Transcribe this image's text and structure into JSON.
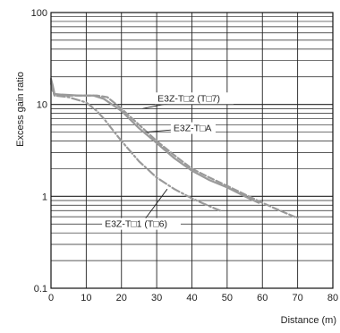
{
  "chart_data": {
    "type": "line",
    "xlabel": "Distance (m)",
    "ylabel": "Excess gain ratio",
    "xlim": [
      0,
      80
    ],
    "ylim": [
      0.1,
      100
    ],
    "yscale": "log",
    "grid": true,
    "x_ticks": [
      0,
      10,
      20,
      30,
      40,
      50,
      60,
      70,
      80
    ],
    "y_ticks": [
      {
        "value": 0.1,
        "label": "0.1"
      },
      {
        "value": 1,
        "label": "1"
      },
      {
        "value": 10,
        "label": "10"
      },
      {
        "value": 100,
        "label": "100"
      }
    ],
    "series": [
      {
        "name": "E3Z-T□2 (T□7)",
        "style": "dashed",
        "color": "#9a9a9a",
        "points": [
          [
            0,
            18
          ],
          [
            0.5,
            15
          ],
          [
            1,
            12.5
          ],
          [
            3,
            12.5
          ],
          [
            8,
            12.5
          ],
          [
            13,
            12.5
          ],
          [
            16,
            12
          ],
          [
            20,
            9
          ],
          [
            25,
            6
          ],
          [
            30,
            4
          ],
          [
            35,
            2.8
          ],
          [
            40,
            2.0
          ],
          [
            45,
            1.6
          ],
          [
            50,
            1.3
          ],
          [
            55,
            1.05
          ],
          [
            60,
            0.85
          ],
          [
            65,
            0.7
          ],
          [
            70,
            0.58
          ]
        ]
      },
      {
        "name": "E3Z-T□A",
        "style": "solid",
        "color": "#9a9a9a",
        "points": [
          [
            0,
            19
          ],
          [
            0.5,
            16
          ],
          [
            1,
            13
          ],
          [
            3,
            12.8
          ],
          [
            8,
            12.5
          ],
          [
            12,
            12.5
          ],
          [
            15,
            11.5
          ],
          [
            20,
            8.5
          ],
          [
            25,
            5.5
          ],
          [
            30,
            3.8
          ],
          [
            35,
            2.6
          ],
          [
            40,
            1.9
          ],
          [
            45,
            1.5
          ],
          [
            50,
            1.25
          ],
          [
            55,
            1.0
          ],
          [
            59,
            0.85
          ]
        ]
      },
      {
        "name": "E3Z-T□1 (T□6)",
        "style": "dashdot",
        "color": "#9a9a9a",
        "points": [
          [
            0,
            17
          ],
          [
            0.5,
            14
          ],
          [
            1,
            12.5
          ],
          [
            5,
            12
          ],
          [
            10,
            10.5
          ],
          [
            13,
            8.5
          ],
          [
            15,
            7
          ],
          [
            20,
            4
          ],
          [
            25,
            2.4
          ],
          [
            30,
            1.6
          ],
          [
            35,
            1.2
          ],
          [
            40,
            0.95
          ],
          [
            45,
            0.78
          ],
          [
            48,
            0.7
          ]
        ]
      }
    ],
    "annotations": [
      {
        "text": "E3Z-T□2 (T□7)",
        "at": [
          29.5,
          13.5
        ],
        "points_to": [
          26,
          9
        ]
      },
      {
        "text": "E3Z-T□A",
        "at": [
          34,
          6.4
        ],
        "points_to": [
          27,
          5
        ]
      },
      {
        "text": "E3Z-T□1 (T□6)",
        "at": [
          14.5,
          0.58
        ],
        "points_to": [
          33,
          1.2
        ]
      }
    ]
  }
}
